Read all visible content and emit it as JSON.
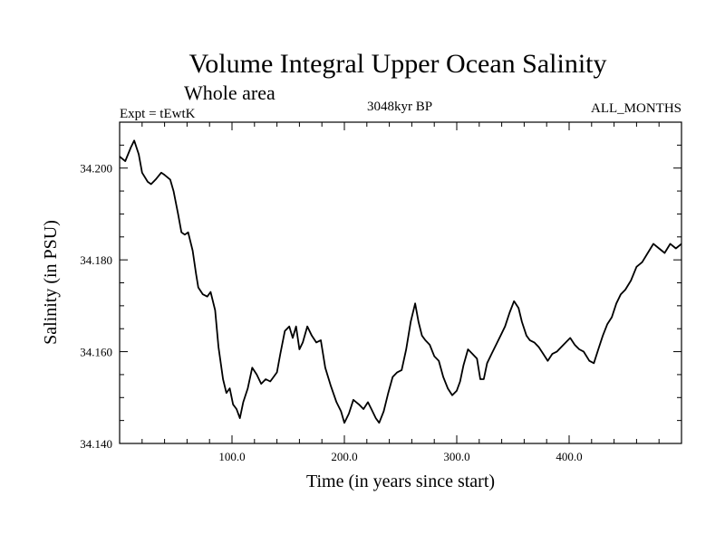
{
  "chart_data": {
    "type": "line",
    "title": "Volume Integral Upper Ocean Salinity",
    "subtitle": "Whole area",
    "experiment": "Expt = tEwtK",
    "period": "3048kyr BP",
    "months": "ALL_MONTHS",
    "xlabel": "Time (in years since start)",
    "ylabel": "Salinity (in PSU)",
    "xlim": [
      0,
      500
    ],
    "ylim": [
      34.14,
      34.21
    ],
    "x_ticks": [
      100,
      200,
      300,
      400
    ],
    "x_tick_labels": [
      "100.0",
      "200.0",
      "300.0",
      "400.0"
    ],
    "y_ticks": [
      34.14,
      34.16,
      34.18,
      34.2
    ],
    "y_tick_labels": [
      "34.140",
      "34.160",
      "34.180",
      "34.200"
    ],
    "series": [
      {
        "name": "Salinity",
        "x": [
          0,
          5,
          10,
          13,
          17,
          20,
          25,
          28,
          32,
          37,
          40,
          45,
          48,
          52,
          55,
          58,
          61,
          65,
          68,
          70,
          74,
          78,
          81,
          85,
          88,
          92,
          95,
          98,
          101,
          104,
          107,
          110,
          114,
          118,
          122,
          126,
          130,
          134,
          137,
          140,
          143,
          147,
          151,
          154,
          157,
          160,
          163,
          167,
          171,
          175,
          179,
          183,
          188,
          193,
          197,
          200,
          204,
          208,
          213,
          217,
          221,
          224,
          228,
          231,
          235,
          239,
          243,
          247,
          251,
          255,
          259,
          263,
          266,
          269,
          272,
          276,
          280,
          284,
          288,
          292,
          296,
          300,
          303,
          306,
          310,
          314,
          318,
          321,
          324,
          327,
          331,
          335,
          339,
          343,
          347,
          351,
          355,
          358,
          362,
          365,
          369,
          373,
          377,
          381,
          385,
          389,
          393,
          397,
          401,
          405,
          409,
          413,
          418,
          422,
          426,
          430,
          434,
          438,
          442,
          446,
          450,
          455,
          460,
          465,
          470,
          475,
          480,
          485,
          490,
          495,
          500
        ],
        "values": [
          34.2025,
          34.2015,
          34.2045,
          34.206,
          34.203,
          34.199,
          34.197,
          34.1965,
          34.1975,
          34.199,
          34.1985,
          34.1975,
          34.195,
          34.19,
          34.186,
          34.1855,
          34.186,
          34.182,
          34.177,
          34.174,
          34.1725,
          34.172,
          34.173,
          34.169,
          34.161,
          34.154,
          34.151,
          34.152,
          34.1485,
          34.1475,
          34.1455,
          34.149,
          34.152,
          34.1565,
          34.155,
          34.153,
          34.154,
          34.1535,
          34.1545,
          34.1555,
          34.1595,
          34.1645,
          34.1655,
          34.163,
          34.1655,
          34.1605,
          34.162,
          34.1655,
          34.1635,
          34.162,
          34.1625,
          34.1565,
          34.1525,
          34.149,
          34.147,
          34.1445,
          34.1465,
          34.1495,
          34.1485,
          34.1475,
          34.149,
          34.1475,
          34.1455,
          34.1445,
          34.147,
          34.151,
          34.1545,
          34.1555,
          34.156,
          34.1605,
          34.1665,
          34.1705,
          34.1665,
          34.1635,
          34.1625,
          34.1615,
          34.159,
          34.158,
          34.1545,
          34.152,
          34.1505,
          34.1515,
          34.1535,
          34.157,
          34.1605,
          34.1595,
          34.1585,
          34.154,
          34.154,
          34.1575,
          34.1595,
          34.1615,
          34.1635,
          34.1655,
          34.1685,
          34.171,
          34.1695,
          34.1665,
          34.1635,
          34.1625,
          34.162,
          34.161,
          34.1595,
          34.158,
          34.1595,
          34.16,
          34.161,
          34.162,
          34.163,
          34.1615,
          34.1605,
          34.16,
          34.158,
          34.1575,
          34.1605,
          34.1635,
          34.166,
          34.1675,
          34.1705,
          34.1725,
          34.1735,
          34.1755,
          34.1785,
          34.1795,
          34.1815,
          34.1835,
          34.1825,
          34.1815,
          34.1835,
          34.1825,
          34.1835
        ]
      }
    ]
  }
}
